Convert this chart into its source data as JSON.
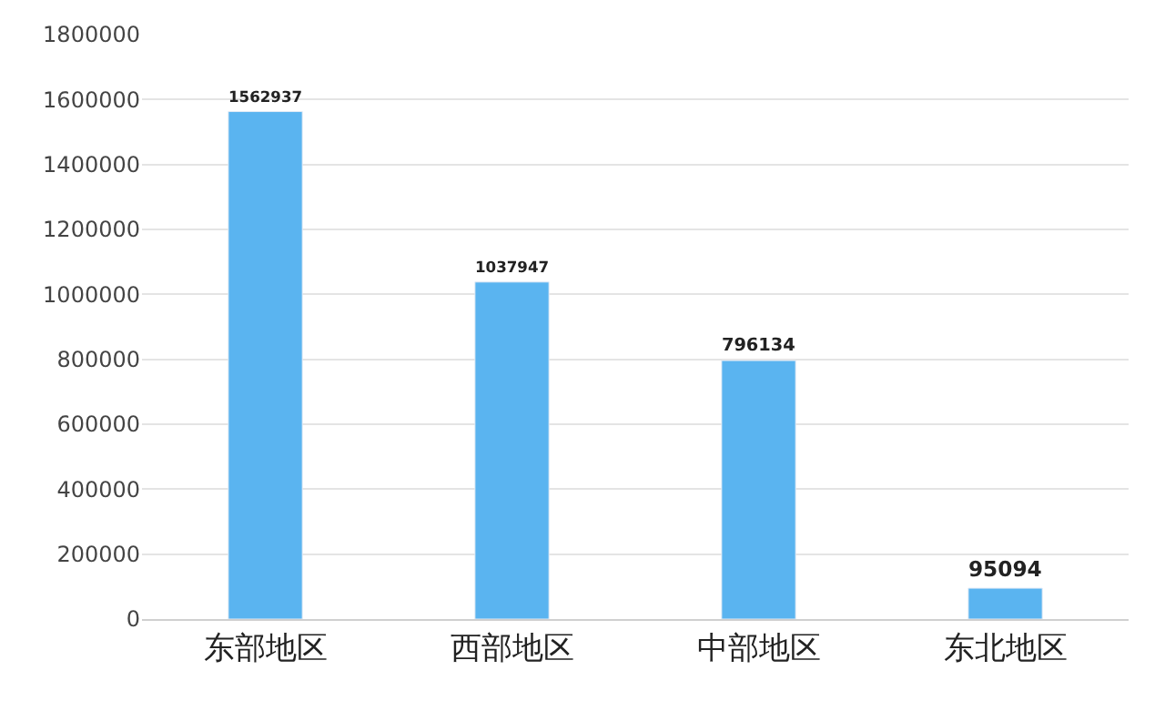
{
  "chart_data": {
    "type": "bar",
    "categories": [
      "东部地区",
      "西部地区",
      "中部地区",
      "东北地区"
    ],
    "values": [
      1562937,
      1037947,
      796134,
      95094
    ],
    "color": "#5ab4f0",
    "ylim": [
      0,
      1800000
    ],
    "yticks": [
      0,
      200000,
      400000,
      600000,
      800000,
      1000000,
      1200000,
      1400000,
      1600000,
      1800000
    ],
    "grid": "y",
    "data_labels": true,
    "legend": false
  }
}
